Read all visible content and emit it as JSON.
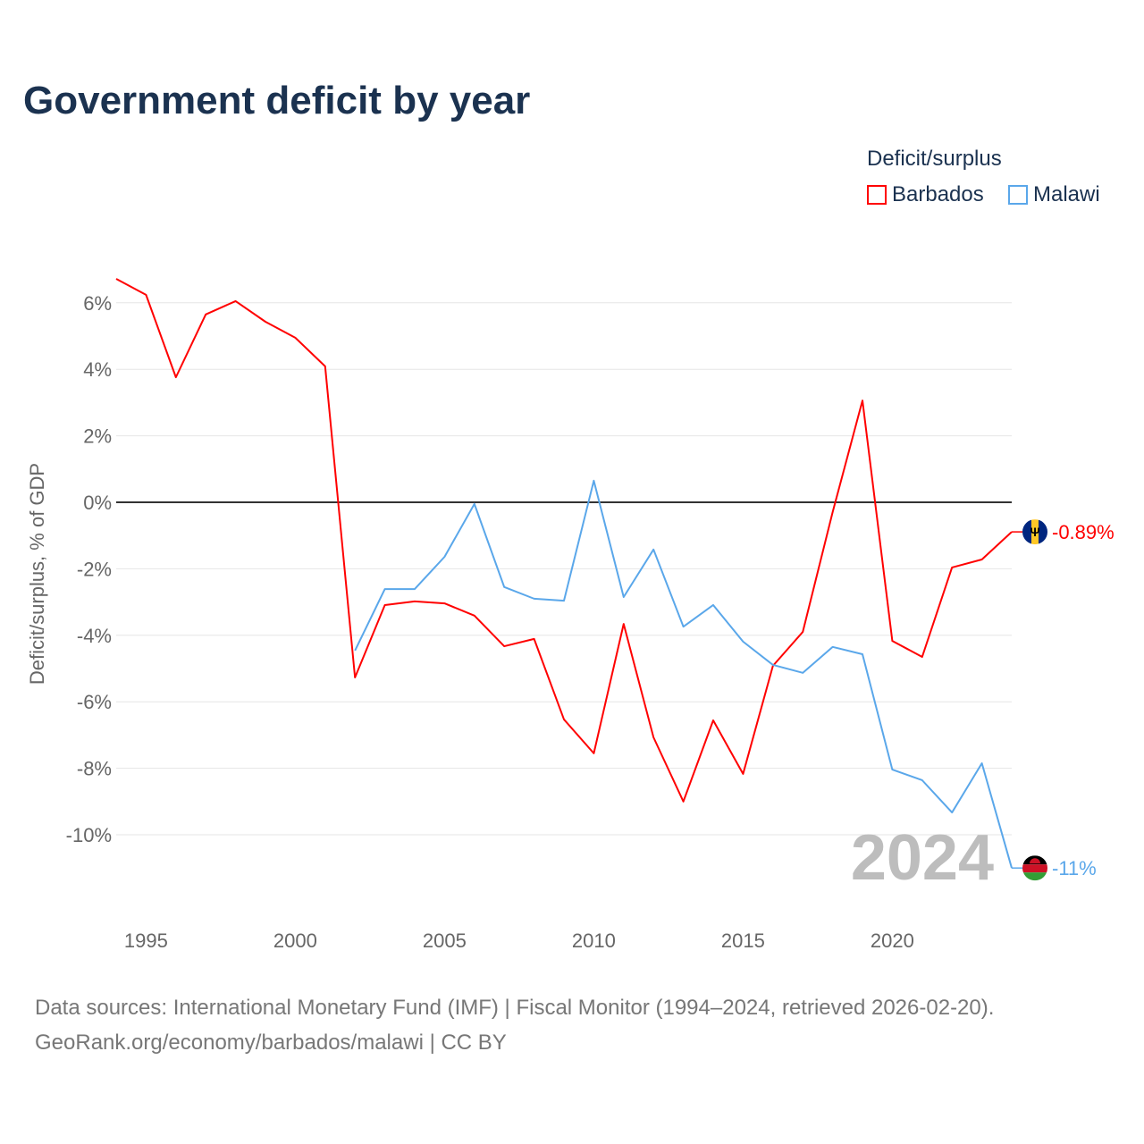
{
  "title": "Government deficit by year",
  "legend": {
    "title": "Deficit/surplus",
    "items": [
      {
        "label": "Barbados",
        "color": "#ff0000"
      },
      {
        "label": "Malawi",
        "color": "#5aa7ea"
      }
    ]
  },
  "year_watermark": "2024",
  "source_line1": "Data sources: International Monetary Fund (IMF) | Fiscal Monitor (1994–2024, retrieved 2026-02-20).",
  "source_line2": "GeoRank.org/economy/barbados/malawi | CC BY",
  "chart_data": {
    "type": "line",
    "title": "Government deficit by year",
    "xlabel": "",
    "ylabel": "Deficit/surplus, % of GDP",
    "xlim": [
      1994,
      2024
    ],
    "ylim": [
      -12,
      7
    ],
    "xticks": [
      1995,
      2000,
      2005,
      2010,
      2015,
      2020
    ],
    "yticks": [
      6,
      4,
      2,
      0,
      -2,
      -4,
      -6,
      -8,
      -10
    ],
    "ytick_labels": [
      "6%",
      "4%",
      "2%",
      "0%",
      "-2%",
      "-4%",
      "-6%",
      "-8%",
      "-10%"
    ],
    "grid": true,
    "legend_position": "top-right",
    "series": [
      {
        "name": "Barbados",
        "color": "#ff0000",
        "end_label": "-0.89%",
        "x": [
          1994,
          1995,
          1996,
          1997,
          1998,
          1999,
          2000,
          2001,
          2002,
          2003,
          2004,
          2005,
          2006,
          2007,
          2008,
          2009,
          2010,
          2011,
          2012,
          2013,
          2014,
          2015,
          2016,
          2017,
          2018,
          2019,
          2020,
          2021,
          2022,
          2023,
          2024
        ],
        "values": [
          6.72,
          6.24,
          3.76,
          5.65,
          6.05,
          5.43,
          4.95,
          4.09,
          -5.27,
          -3.09,
          -2.98,
          -3.04,
          -3.41,
          -4.33,
          -4.11,
          -6.53,
          -7.55,
          -3.66,
          -7.07,
          -9.0,
          -6.56,
          -8.17,
          -4.92,
          -3.9,
          -0.3,
          3.06,
          -4.17,
          -4.65,
          -1.96,
          -1.72,
          -0.89
        ]
      },
      {
        "name": "Malawi",
        "color": "#5aa7ea",
        "end_label": "-11%",
        "x": [
          2002,
          2003,
          2004,
          2005,
          2006,
          2007,
          2008,
          2009,
          2010,
          2011,
          2012,
          2013,
          2014,
          2015,
          2016,
          2017,
          2018,
          2019,
          2020,
          2021,
          2022,
          2023,
          2024
        ],
        "values": [
          -4.46,
          -2.61,
          -2.61,
          -1.64,
          -0.05,
          -2.55,
          -2.9,
          -2.96,
          0.65,
          -2.85,
          -1.42,
          -3.74,
          -3.09,
          -4.19,
          -4.89,
          -5.13,
          -4.35,
          -4.57,
          -8.04,
          -8.36,
          -9.33,
          -7.85,
          -11.0
        ]
      }
    ]
  }
}
